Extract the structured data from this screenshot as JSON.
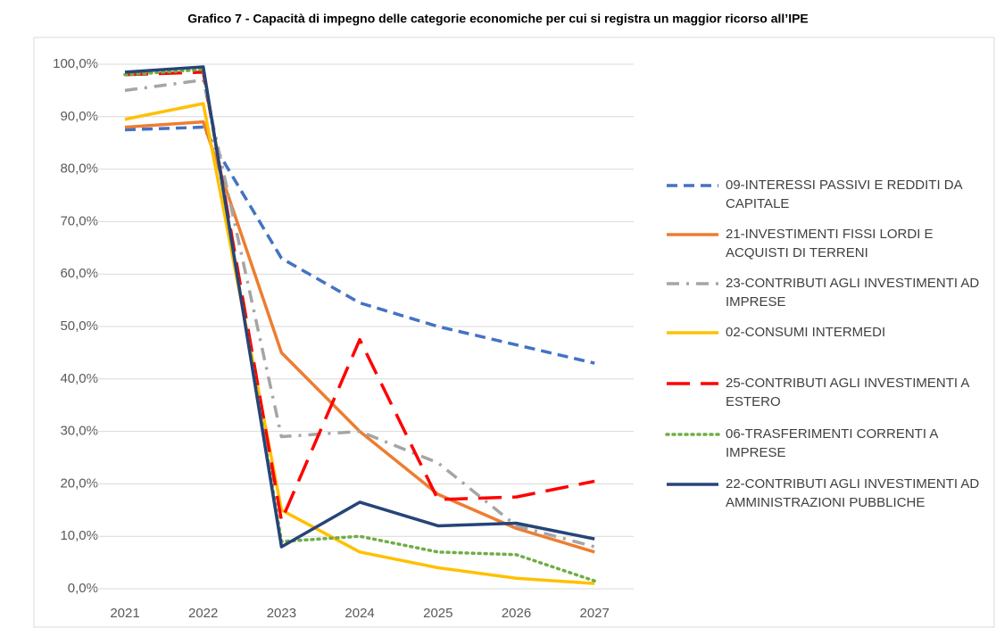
{
  "chart_data": {
    "type": "line",
    "title": "Grafico 7 - Capacità di impegno delle categorie economiche per cui si registra un maggior ricorso all’IPE",
    "categories": [
      "2021",
      "2022",
      "2023",
      "2024",
      "2025",
      "2026",
      "2027"
    ],
    "ylim": [
      0,
      100
    ],
    "yticks": [
      {
        "value": 0,
        "label": "0,0%"
      },
      {
        "value": 10,
        "label": "10,0%"
      },
      {
        "value": 20,
        "label": "20,0%"
      },
      {
        "value": 30,
        "label": "30,0%"
      },
      {
        "value": 40,
        "label": "40,0%"
      },
      {
        "value": 50,
        "label": "50,0%"
      },
      {
        "value": 60,
        "label": "60,0%"
      },
      {
        "value": 70,
        "label": "70,0%"
      },
      {
        "value": 80,
        "label": "80,0%"
      },
      {
        "value": 90,
        "label": "90,0%"
      },
      {
        "value": 100,
        "label": "100,0%"
      }
    ],
    "grid": true,
    "legend": "right",
    "series": [
      {
        "name": "09-INTERESSI PASSIVI E REDDITI DA CAPITALE",
        "color": "#4472c4",
        "style": "dashed",
        "values": [
          87.5,
          88,
          63,
          54.5,
          50,
          46.5,
          43
        ]
      },
      {
        "name": "21-INVESTIMENTI FISSI LORDI E ACQUISTI DI TERRENI",
        "color": "#ed7d31",
        "style": "solid",
        "values": [
          88,
          89,
          45,
          30,
          18,
          11.5,
          7
        ]
      },
      {
        "name": "23-CONTRIBUTI AGLI INVESTIMENTI AD IMPRESE",
        "color": "#a5a5a5",
        "style": "dashdot",
        "values": [
          95,
          97,
          29,
          30,
          24,
          12,
          8
        ]
      },
      {
        "name": "02-CONSUMI INTERMEDI",
        "color": "#ffc000",
        "style": "solid",
        "values": [
          89.5,
          92.5,
          15,
          7,
          4,
          2,
          1
        ]
      },
      {
        "name": "25-CONTRIBUTI AGLI INVESTIMENTI A ESTERO",
        "color": "#ff0000",
        "style": "longdash",
        "values": [
          98,
          98.5,
          13,
          47.5,
          17,
          17.5,
          20.5
        ]
      },
      {
        "name": "06-TRASFERIMENTI CORRENTI A IMPRESE",
        "color": "#70ad47",
        "style": "dotted",
        "values": [
          98,
          99,
          9,
          10,
          7,
          6.5,
          1.5
        ]
      },
      {
        "name": "22-CONTRIBUTI AGLI INVESTIMENTI AD AMMINISTRAZIONI PUBBLICHE",
        "color": "#264478",
        "style": "solid",
        "values": [
          98.5,
          99.5,
          8,
          16.5,
          12,
          12.5,
          9.5
        ]
      }
    ]
  }
}
